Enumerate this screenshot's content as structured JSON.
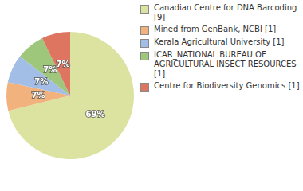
{
  "chart_data": {
    "type": "pie",
    "categories": [
      "Canadian Centre for DNA Barcoding [9]",
      "Mined from GenBank, NCBI [1]",
      "Kerala Agricultural University [1]",
      "ICAR_NATIONAL BUREAU OF AGRICULTURAL INSECT RESOURCES [1]",
      "Centre for Biodiversity Genomics [1]"
    ],
    "values": [
      69,
      7,
      7,
      7,
      7
    ],
    "value_labels": [
      "69%",
      "7%",
      "7%",
      "7%",
      "7%"
    ],
    "colors": [
      "#dce3a1",
      "#f2b27e",
      "#a3bee6",
      "#9fc77c",
      "#de7560"
    ],
    "data_labels": true,
    "legend": "right"
  }
}
